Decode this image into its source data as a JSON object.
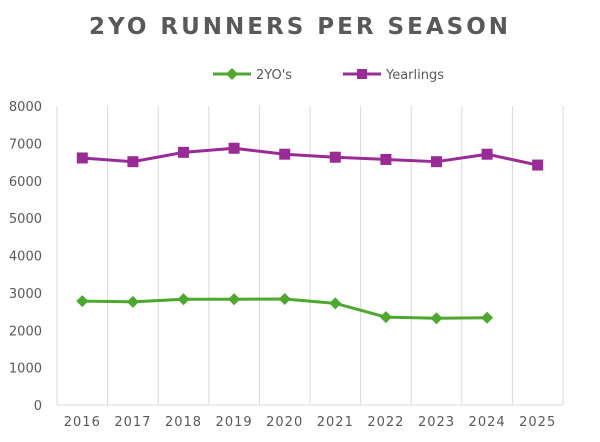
{
  "chart_data": {
    "type": "line",
    "title": "2YO RUNNERS PER SEASON",
    "categories": [
      "2016",
      "2017",
      "2018",
      "2019",
      "2020",
      "2021",
      "2022",
      "2023",
      "2024",
      "2025"
    ],
    "series": [
      {
        "name": "2YO's",
        "color": "#4ea72e",
        "marker": "diamond",
        "values": [
          2780,
          2760,
          2830,
          2830,
          2835,
          2720,
          2350,
          2320,
          2335,
          null
        ]
      },
      {
        "name": "Yearlings",
        "color": "#9a2a96",
        "marker": "square",
        "values": [
          6610,
          6510,
          6760,
          6870,
          6710,
          6630,
          6570,
          6510,
          6710,
          6420
        ]
      }
    ],
    "yticks": [
      0,
      1000,
      2000,
      3000,
      4000,
      5000,
      6000,
      7000,
      8000
    ],
    "ylim": [
      0,
      8000
    ],
    "xlabel": "",
    "ylabel": "",
    "grid": "vertical",
    "legend": "top"
  }
}
